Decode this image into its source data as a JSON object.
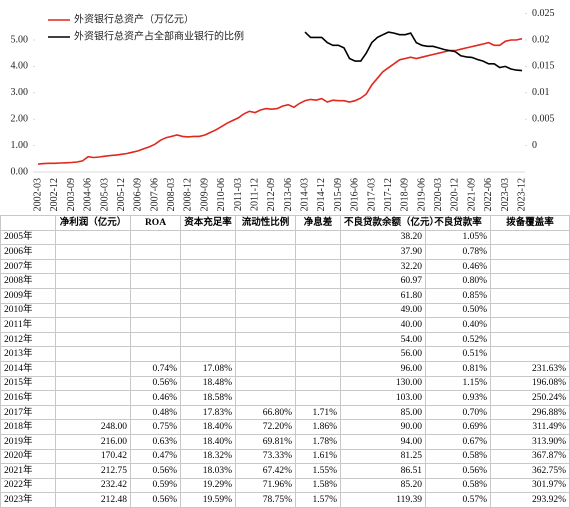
{
  "chart_data": {
    "type": "line",
    "categories": [
      "2002-03",
      null,
      null,
      "2002-12",
      null,
      null,
      "2003-09",
      null,
      null,
      "2004-06",
      null,
      null,
      "2005-03",
      null,
      null,
      "2005-12",
      null,
      null,
      "2006-09",
      null,
      null,
      "2007-06",
      null,
      null,
      "2008-03",
      null,
      null,
      "2008-12",
      null,
      null,
      "2009-09",
      null,
      null,
      "2010-06",
      null,
      null,
      "2011-03",
      null,
      null,
      "2011-12",
      null,
      null,
      "2012-09",
      null,
      null,
      "2013-06",
      null,
      null,
      "2014-03",
      null,
      null,
      "2014-12",
      null,
      null,
      "2015-09",
      null,
      null,
      "2016-06",
      null,
      null,
      "2017-03",
      null,
      null,
      "2017-12",
      null,
      null,
      "2018-09",
      null,
      null,
      "2019-06",
      null,
      null,
      "2020-03",
      null,
      null,
      "2020-12",
      null,
      null,
      "2021-09",
      null,
      null,
      "2022-06",
      null,
      null,
      "2023-03",
      null,
      null,
      "2023-12"
    ],
    "series": [
      {
        "name": "外资银行总资产（万亿元）",
        "color": "#e0281e",
        "values": [
          0.3,
          0.32,
          0.33,
          0.33,
          0.34,
          0.35,
          0.36,
          0.38,
          0.42,
          0.58,
          0.55,
          0.57,
          0.6,
          0.62,
          0.64,
          0.67,
          0.7,
          0.75,
          0.8,
          0.88,
          0.95,
          1.05,
          1.2,
          1.3,
          1.35,
          1.4,
          1.35,
          1.33,
          1.35,
          1.35,
          1.4,
          1.5,
          1.6,
          1.72,
          1.85,
          1.95,
          2.05,
          2.2,
          2.3,
          2.25,
          2.35,
          2.4,
          2.38,
          2.4,
          2.5,
          2.55,
          2.45,
          2.6,
          2.7,
          2.75,
          2.72,
          2.78,
          2.65,
          2.72,
          2.7,
          2.7,
          2.65,
          2.7,
          2.8,
          2.95,
          3.3,
          3.55,
          3.8,
          3.95,
          4.1,
          4.25,
          4.3,
          4.35,
          4.3,
          4.35,
          4.4,
          4.45,
          4.5,
          4.55,
          4.6,
          4.6,
          4.65,
          4.7,
          4.75,
          4.8,
          4.85,
          4.9,
          4.8,
          4.8,
          4.95,
          5.0,
          5.0,
          5.05
        ]
      },
      {
        "name": "外资银行总资产占全部商业银行的比例",
        "color": "#000000",
        "axis": "y2",
        "values": [
          null,
          null,
          null,
          null,
          null,
          null,
          null,
          null,
          null,
          null,
          null,
          null,
          null,
          null,
          null,
          null,
          null,
          null,
          null,
          null,
          null,
          null,
          null,
          null,
          null,
          null,
          null,
          null,
          null,
          null,
          null,
          null,
          null,
          null,
          null,
          null,
          null,
          null,
          null,
          null,
          null,
          null,
          null,
          null,
          null,
          null,
          null,
          null,
          0.0215,
          0.0205,
          0.0205,
          0.0205,
          0.0195,
          0.019,
          0.019,
          0.0185,
          0.0165,
          0.016,
          0.016,
          0.0175,
          0.0195,
          0.0205,
          0.021,
          0.0215,
          0.0213,
          0.021,
          0.021,
          0.0213,
          0.0195,
          0.019,
          0.0188,
          0.0188,
          0.0185,
          0.0182,
          0.018,
          0.0178,
          0.017,
          0.0168,
          0.0167,
          0.0163,
          0.016,
          0.0155,
          0.0155,
          0.0148,
          0.015,
          0.0145,
          0.0143,
          0.0142
        ]
      }
    ],
    "ylim": [
      0,
      6
    ],
    "yticks": [
      {
        "value": 0,
        "label": "0.00"
      },
      {
        "value": 1,
        "label": "1.00"
      },
      {
        "value": 2,
        "label": "2.00"
      },
      {
        "value": 3,
        "label": "3.00"
      },
      {
        "value": 4,
        "label": "4.00"
      },
      {
        "value": 5,
        "label": "5.00"
      }
    ],
    "y2lim": [
      -0.005,
      0.025
    ],
    "y2ticks": [
      0,
      0.005,
      0.01,
      0.015,
      0.02,
      0.025
    ],
    "legend": "top-left"
  },
  "table": {
    "header": [
      "净利润（亿元）",
      "ROA",
      "资本充足率",
      "流动性比例",
      "净息差",
      "不良贷款余额（亿元）",
      "不良贷款率",
      "拨备覆盖率"
    ],
    "rows": [
      {
        "year": "2005年",
        "cells": [
          null,
          null,
          null,
          null,
          null,
          "38.20",
          "1.05%",
          null
        ]
      },
      {
        "year": "2006年",
        "cells": [
          null,
          null,
          null,
          null,
          null,
          "37.90",
          "0.78%",
          null
        ]
      },
      {
        "year": "2007年",
        "cells": [
          null,
          null,
          null,
          null,
          null,
          "32.20",
          "0.46%",
          null
        ]
      },
      {
        "year": "2008年",
        "cells": [
          null,
          null,
          null,
          null,
          null,
          "60.97",
          "0.80%",
          null
        ]
      },
      {
        "year": "2009年",
        "cells": [
          null,
          null,
          null,
          null,
          null,
          "61.80",
          "0.85%",
          null
        ]
      },
      {
        "year": "2010年",
        "cells": [
          null,
          null,
          null,
          null,
          null,
          "49.00",
          "0.50%",
          null
        ]
      },
      {
        "year": "2011年",
        "cells": [
          null,
          null,
          null,
          null,
          null,
          "40.00",
          "0.40%",
          null
        ]
      },
      {
        "year": "2012年",
        "cells": [
          null,
          null,
          null,
          null,
          null,
          "54.00",
          "0.52%",
          null
        ]
      },
      {
        "year": "2013年",
        "cells": [
          null,
          null,
          null,
          null,
          null,
          "56.00",
          "0.51%",
          null
        ]
      },
      {
        "year": "2014年",
        "cells": [
          null,
          "0.74%",
          "17.08%",
          null,
          null,
          "96.00",
          "0.81%",
          "231.63%"
        ]
      },
      {
        "year": "2015年",
        "cells": [
          null,
          "0.56%",
          "18.48%",
          null,
          null,
          "130.00",
          "1.15%",
          "196.08%"
        ]
      },
      {
        "year": "2016年",
        "cells": [
          null,
          "0.46%",
          "18.58%",
          null,
          null,
          "103.00",
          "0.93%",
          "250.24%"
        ]
      },
      {
        "year": "2017年",
        "cells": [
          null,
          "0.48%",
          "17.83%",
          "66.80%",
          "1.71%",
          "85.00",
          "0.70%",
          "296.88%"
        ]
      },
      {
        "year": "2018年",
        "cells": [
          "248.00",
          "0.75%",
          "18.40%",
          "72.20%",
          "1.86%",
          "90.00",
          "0.69%",
          "311.49%"
        ]
      },
      {
        "year": "2019年",
        "cells": [
          "216.00",
          "0.63%",
          "18.40%",
          "69.81%",
          "1.78%",
          "94.00",
          "0.67%",
          "313.90%"
        ]
      },
      {
        "year": "2020年",
        "cells": [
          "170.42",
          "0.47%",
          "18.32%",
          "73.33%",
          "1.61%",
          "81.25",
          "0.58%",
          "367.87%"
        ]
      },
      {
        "year": "2021年",
        "cells": [
          "212.75",
          "0.56%",
          "18.03%",
          "67.42%",
          "1.55%",
          "86.51",
          "0.56%",
          "362.75%"
        ]
      },
      {
        "year": "2022年",
        "cells": [
          "232.42",
          "0.59%",
          "19.29%",
          "71.96%",
          "1.58%",
          "85.20",
          "0.58%",
          "301.97%"
        ]
      },
      {
        "year": "2023年",
        "cells": [
          "212.48",
          "0.56%",
          "19.59%",
          "78.75%",
          "1.57%",
          "119.39",
          "0.57%",
          "293.92%"
        ]
      }
    ]
  }
}
